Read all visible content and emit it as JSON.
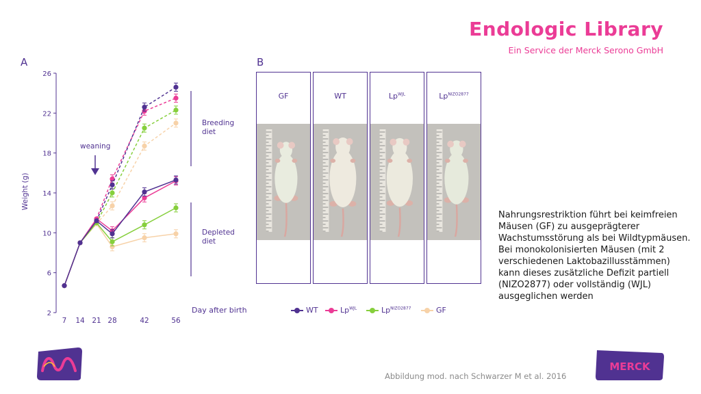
{
  "header": {
    "title": "Endologic Library",
    "subtitle": "Ein Service der Merck Serono GmbH"
  },
  "panels": {
    "a": "A",
    "b": "B"
  },
  "colors": {
    "wt": "#503291",
    "wjl": "#eb3c96",
    "nizo": "#86cf3c",
    "gf": "#f7d2a8",
    "brand": "#eb3c96",
    "axis": "#503291"
  },
  "chart_data": {
    "type": "line",
    "x": [
      7,
      14,
      21,
      28,
      42,
      56
    ],
    "xlabel": "Day after birth",
    "ylabel": "Weight (g)",
    "yticks": [
      2,
      6,
      10,
      14,
      18,
      22,
      26
    ],
    "ylim": [
      2,
      26
    ],
    "xlim": [
      7,
      56
    ],
    "series": [
      {
        "name": "WT",
        "color": "#503291",
        "common": [
          [
            7,
            4.7
          ],
          [
            14,
            9.0
          ],
          [
            21,
            11.2
          ]
        ],
        "breeding": [
          [
            28,
            14.8
          ],
          [
            42,
            22.6
          ],
          [
            56,
            24.6
          ]
        ],
        "depleted": [
          [
            28,
            9.9
          ],
          [
            42,
            14.1
          ],
          [
            56,
            15.3
          ]
        ]
      },
      {
        "name": "LpWJL",
        "color": "#eb3c96",
        "common": [
          [
            7,
            4.7
          ],
          [
            14,
            9.0
          ],
          [
            21,
            11.4
          ]
        ],
        "breeding": [
          [
            28,
            15.4
          ],
          [
            42,
            22.2
          ],
          [
            56,
            23.5
          ]
        ],
        "depleted": [
          [
            28,
            10.2
          ],
          [
            42,
            13.5
          ],
          [
            56,
            15.2
          ]
        ]
      },
      {
        "name": "LpNIZO2877",
        "color": "#86cf3c",
        "common": [
          [
            7,
            4.7
          ],
          [
            14,
            9.0
          ],
          [
            21,
            11.0
          ]
        ],
        "breeding": [
          [
            28,
            14.0
          ],
          [
            42,
            20.5
          ],
          [
            56,
            22.3
          ]
        ],
        "depleted": [
          [
            28,
            9.1
          ],
          [
            42,
            10.8
          ],
          [
            56,
            12.5
          ]
        ]
      },
      {
        "name": "GF",
        "color": "#f7d2a8",
        "common": [
          [
            7,
            4.7
          ],
          [
            14,
            9.0
          ],
          [
            21,
            10.9
          ]
        ],
        "breeding": [
          [
            28,
            12.7
          ],
          [
            42,
            18.7
          ],
          [
            56,
            21.0
          ]
        ],
        "depleted": [
          [
            28,
            8.6
          ],
          [
            42,
            9.5
          ],
          [
            56,
            9.9
          ]
        ]
      }
    ],
    "annotations": {
      "weaning": "weaning",
      "breeding_diet": [
        "Breeding",
        "diet"
      ],
      "depleted_diet": [
        "Depleted",
        "diet"
      ]
    }
  },
  "photos": [
    {
      "label": "GF",
      "sup": ""
    },
    {
      "label": "WT",
      "sup": ""
    },
    {
      "label": "Lp",
      "sup": "WJL"
    },
    {
      "label": "Lp",
      "sup": "NIZO2877"
    }
  ],
  "legend": [
    {
      "label": "WT",
      "sup": "",
      "color": "#503291"
    },
    {
      "label": "Lp",
      "sup": "WJL",
      "color": "#eb3c96"
    },
    {
      "label": "Lp",
      "sup": "NIZO2877",
      "color": "#86cf3c"
    },
    {
      "label": "GF",
      "sup": "",
      "color": "#f7d2a8"
    }
  ],
  "description": "Nahrungsrestriktion führt bei keimfreien Mäusen (GF) zu ausgeprägterer Wachstumsstörung als bei Wildtypmäusen. Bei monokolonisierten Mäusen (mit 2 verschiedenen Laktobazillusstämmen) kann dieses zusätzliche Defizit partiell (NIZO2877) oder vollständig (WJL) ausgeglichen werden",
  "citation": "Abbildung mod. nach Schwarzer M et al. 2016",
  "logos": {
    "left": "merck-m-logo",
    "right": "merck-wordmark-logo",
    "right_text": "MERCK"
  }
}
